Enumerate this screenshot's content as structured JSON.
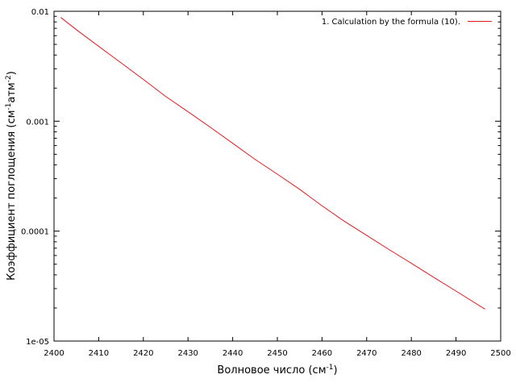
{
  "chart_data": {
    "type": "line",
    "title": "",
    "xlabel": {
      "base": "Волновое число (см",
      "sup1": "-1",
      "tail": ")"
    },
    "ylabel": {
      "base": "Коэффициент поглощения (см",
      "sup1": "-1",
      "mid": "атм",
      "sup2": "-2",
      "tail": ")"
    },
    "x_scale": "linear",
    "y_scale": "log",
    "xlim": [
      2400,
      2500
    ],
    "ylim": [
      1e-05,
      0.01
    ],
    "x_ticks": [
      2400,
      2410,
      2420,
      2430,
      2440,
      2450,
      2460,
      2470,
      2480,
      2490,
      2500
    ],
    "x_tick_labels": [
      "2400",
      "2410",
      "2420",
      "2430",
      "2440",
      "2450",
      "2460",
      "2470",
      "2480",
      "2490",
      "2500"
    ],
    "y_ticks": [
      1e-05,
      0.0001,
      0.001,
      0.01
    ],
    "y_tick_labels": [
      "1e-05",
      "0.0001",
      "0.001",
      "0.01"
    ],
    "grid": false,
    "legend_position": "top-right",
    "series": [
      {
        "name": "1. Calculation by the formula (10).",
        "color": "#e41a1c",
        "x": [
          2401.5,
          2405,
          2410,
          2415,
          2420,
          2425,
          2430,
          2435,
          2440,
          2445,
          2450,
          2455,
          2460,
          2465,
          2470,
          2475,
          2480,
          2485,
          2490,
          2496.5
        ],
        "y": [
          0.0088,
          0.0068,
          0.0048,
          0.0034,
          0.0024,
          0.00168,
          0.00122,
          0.00088,
          0.00063,
          0.00045,
          0.00033,
          0.00024,
          0.00017,
          0.000123,
          9.15e-05,
          6.8e-05,
          5.1e-05,
          3.8e-05,
          2.85e-05,
          1.95e-05
        ]
      }
    ]
  }
}
